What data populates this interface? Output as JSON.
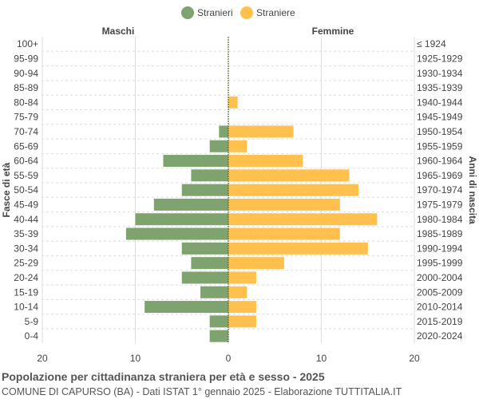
{
  "chart_data": {
    "type": "bar",
    "orientation": "horizontal-pyramid",
    "title": "Popolazione per cittadinanza straniera per età e sesso - 2025",
    "subtitle": "COMUNE DI CAPURSO (BA) - Dati ISTAT 1° gennaio 2025 - Elaborazione TUTTITALIA.IT",
    "left_header": "Maschi",
    "right_header": "Femmine",
    "ylabel_left": "Fasce di età",
    "ylabel_right": "Anni di nascita",
    "legend_position": "top",
    "xlim": [
      -20,
      20
    ],
    "xticks": [
      "20",
      "10",
      "0",
      "10",
      "20"
    ],
    "grid": true,
    "categories": [
      "100+",
      "95-99",
      "90-94",
      "85-89",
      "80-84",
      "75-79",
      "70-74",
      "65-69",
      "60-64",
      "55-59",
      "50-54",
      "45-49",
      "40-44",
      "35-39",
      "30-34",
      "25-29",
      "20-24",
      "15-19",
      "10-14",
      "5-9",
      "0-4"
    ],
    "birth_years": [
      "≤ 1924",
      "1925-1929",
      "1930-1934",
      "1935-1939",
      "1940-1944",
      "1945-1949",
      "1950-1954",
      "1955-1959",
      "1960-1964",
      "1965-1969",
      "1970-1974",
      "1975-1979",
      "1980-1984",
      "1985-1989",
      "1990-1994",
      "1995-1999",
      "2000-2004",
      "2005-2009",
      "2010-2014",
      "2015-2019",
      "2020-2024"
    ],
    "series": [
      {
        "name": "Stranieri",
        "color": "#7fa36e",
        "side": "left",
        "values": [
          0,
          0,
          0,
          0,
          0,
          0,
          1,
          2,
          7,
          4,
          5,
          8,
          10,
          11,
          5,
          4,
          5,
          3,
          9,
          2,
          2
        ]
      },
      {
        "name": "Straniere",
        "color": "#ffc04d",
        "side": "right",
        "values": [
          0,
          0,
          0,
          0,
          1,
          0,
          7,
          2,
          8,
          13,
          14,
          12,
          16,
          12,
          15,
          6,
          3,
          2,
          3,
          3,
          0
        ]
      }
    ]
  }
}
